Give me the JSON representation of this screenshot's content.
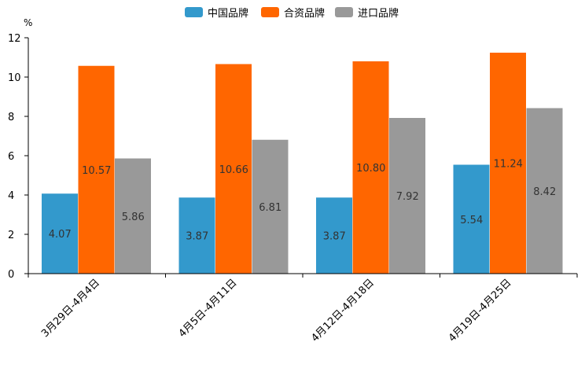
{
  "chart_data": {
    "type": "bar",
    "title": "",
    "xlabel": "",
    "ylabel": "%",
    "ylim": [
      0,
      12
    ],
    "yticks": [
      0,
      2,
      4,
      6,
      8,
      10,
      12
    ],
    "grid": false,
    "legend_position": "top-center",
    "categories": [
      "3月29日-4月4日",
      "4月5日-4月11日",
      "4月12日-4月18日",
      "4月19日-4月25日"
    ],
    "series": [
      {
        "name": "中国品牌",
        "color": "#3399cc",
        "values": [
          4.07,
          3.87,
          3.87,
          5.54
        ]
      },
      {
        "name": "合资品牌",
        "color": "#ff6600",
        "values": [
          10.57,
          10.66,
          10.8,
          11.24
        ]
      },
      {
        "name": "进口品牌",
        "color": "#999999",
        "values": [
          5.86,
          6.81,
          7.92,
          8.42
        ]
      }
    ],
    "data_labels": [
      [
        "4.07",
        "3.87",
        "3.87",
        "5.54"
      ],
      [
        "10.57",
        "10.66",
        "10.80",
        "11.24"
      ],
      [
        "5.86",
        "6.81",
        "7.92",
        "8.42"
      ]
    ]
  }
}
